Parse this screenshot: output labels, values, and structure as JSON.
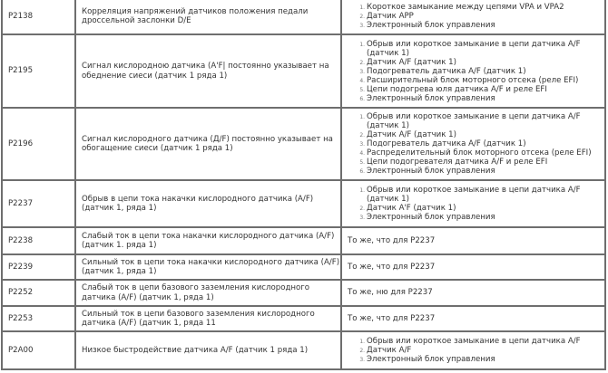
{
  "rows": [
    {
      "code": "P2138",
      "description": "Корреляция напряжений датчиков положения педали дроссельной заслонки D/E",
      "causes": [
        "Короткое замыкание между цепями VPA и VPA2",
        "Датчик APP",
        "Электронный блок управления"
      ]
    },
    {
      "code": "P2195",
      "description": "Сигнал кислородною датчика (A'F| постоянно указывает на обеднение сиеси (датчик 1 ряда 1)",
      "causes": [
        "Обрыв или короткое замыкание в цепи датчика A/F (датчик 1)",
        "Датчик A/F (датчик 1)",
        "Подогреватель датчика A/F (датчик 1)",
        "Расширительный блок моторного отсека (реле EFI)",
        "Цепи подогрева юля датчика A/F и реле EFI",
        "Электронный блок управления"
      ]
    },
    {
      "code": "P2196",
      "description": "Сигнал кислородного датчика (Д/F) постоянно указывает на обогащение сиеси (датчик 1 ряда 1)",
      "causes": [
        "Обрыв или короткое замыкание в цепи датчика A/F (датчик 1)",
        "Датчик A/F (датчик 1)",
        "Подогреватель датчика A/F (датчик 1)",
        "Распределительный блок моторного отсека (реле EFI)",
        "Цепи подогревателя датчика A/F и реле EFI",
        "Электронный блок управления"
      ]
    },
    {
      "code": "P2237",
      "description": "Обрыв в цепи тока накачки кислородного датчика (A/F) (датчик 1, ряда 1)",
      "causes": [
        "Обрыв или короткое замыкание в цепи датчика A/F (датчик 1)",
        "Датчик A'F (датчик 1)",
        "Электронный блок управления"
      ]
    },
    {
      "code": "P2238",
      "description": "Слабый ток в цепи тока накачки кислородного датчика (A/F) (датчик 1. ряда 1)",
      "same": "То же, что для P2237"
    },
    {
      "code": "P2239",
      "description": "Сильный ток в цепи тока накачки кислородного датчика (A/F) (датчик 1, ряда 1)",
      "same": "То же, что для P2237"
    },
    {
      "code": "P2252",
      "description": "Слабый ток в цепи базового заземления кислородного датчика (A/F) (датчик 1, ряда 1)",
      "same": "То же, ню для P2237"
    },
    {
      "code": "P2253",
      "description": "Сильный ток в цепи базового заземления кислородного датчика (A/F) (датчик 1, ряда 11",
      "same": "То же, что для P2237"
    },
    {
      "code": "P2A00",
      "description": "Низкое быстродействие датчика A/F (датчик 1 ряда 1)",
      "causes": [
        "Обрыв или короткое замыкание в цепи датчика A/F",
        "Датчик A/F",
        "Электронный блок управления"
      ]
    }
  ]
}
